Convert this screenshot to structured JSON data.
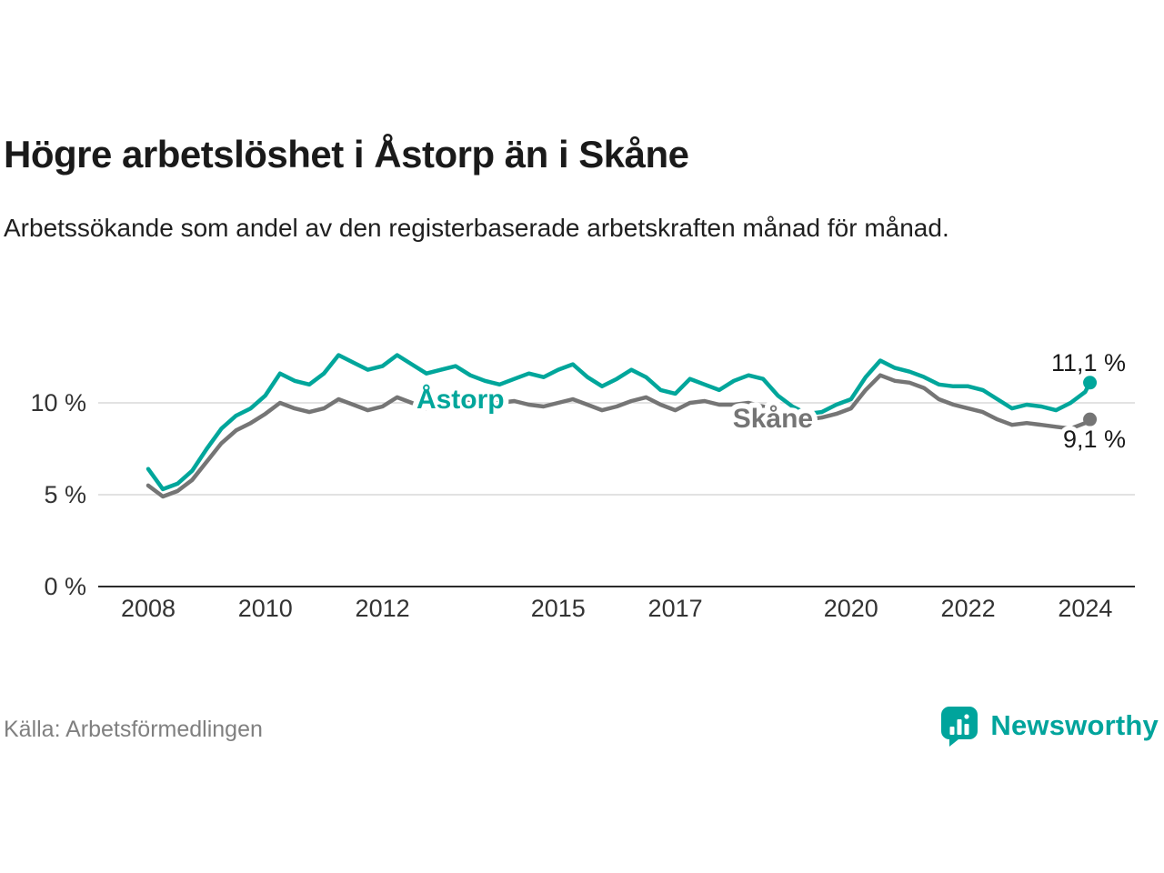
{
  "title": "Högre arbetslöshet i Åstorp än i Skåne",
  "subtitle": "Arbetssökande som andel av den registerbaserade arbetskraften månad för månad.",
  "source": "Källa: Arbetsförmedlingen",
  "brand": {
    "name": "Newsworthy",
    "color": "#00a49c"
  },
  "colors": {
    "astorp": "#00a69b",
    "skane": "#757575",
    "grid": "#d9d9d9",
    "axis": "#2b2b2b",
    "text": "#333333"
  },
  "chart_data": {
    "type": "line",
    "title": "Högre arbetslöshet i Åstorp än i Skåne",
    "xlabel": "",
    "ylabel": "",
    "grid": true,
    "legend_position": "inline",
    "xlim": [
      2007.85,
      2024.6
    ],
    "ylim": [
      0,
      13.6
    ],
    "x_ticks": [
      2008,
      2010,
      2012,
      2015,
      2017,
      2020,
      2022,
      2024
    ],
    "y_ticks": [
      0,
      5,
      10
    ],
    "y_tick_labels": [
      "0 %",
      "5 %",
      "10 %"
    ],
    "x": [
      2008,
      2008.25,
      2008.5,
      2008.75,
      2009,
      2009.25,
      2009.5,
      2009.75,
      2010,
      2010.25,
      2010.5,
      2010.75,
      2011,
      2011.25,
      2011.5,
      2011.75,
      2012,
      2012.25,
      2012.5,
      2012.75,
      2013,
      2013.25,
      2013.5,
      2013.75,
      2014,
      2014.25,
      2014.5,
      2014.75,
      2015,
      2015.25,
      2015.5,
      2015.75,
      2016,
      2016.25,
      2016.5,
      2016.75,
      2017,
      2017.25,
      2017.5,
      2017.75,
      2018,
      2018.25,
      2018.5,
      2018.75,
      2019,
      2019.25,
      2019.5,
      2019.75,
      2020,
      2020.25,
      2020.5,
      2020.75,
      2021,
      2021.25,
      2021.5,
      2021.75,
      2022,
      2022.25,
      2022.5,
      2022.75,
      2023,
      2023.25,
      2023.5,
      2023.75,
      2024,
      2024.08
    ],
    "series": [
      {
        "name": "Åstorp",
        "color": "#00a69b",
        "end_label": "11,1 %",
        "end_value": 11.1,
        "end_label_dy": -13,
        "values": [
          6.4,
          5.3,
          5.6,
          6.3,
          7.5,
          8.6,
          9.3,
          9.7,
          10.4,
          11.6,
          11.2,
          11.0,
          11.6,
          12.6,
          12.2,
          11.8,
          12.0,
          12.6,
          12.1,
          11.6,
          11.8,
          12.0,
          11.5,
          11.2,
          11.0,
          11.3,
          11.6,
          11.4,
          11.8,
          12.1,
          11.4,
          10.9,
          11.3,
          11.8,
          11.4,
          10.7,
          10.5,
          11.3,
          11.0,
          10.7,
          11.2,
          11.5,
          11.3,
          10.4,
          9.8,
          9.4,
          9.5,
          9.9,
          10.2,
          11.4,
          12.3,
          11.9,
          11.7,
          11.4,
          11.0,
          10.9,
          10.9,
          10.7,
          10.2,
          9.7,
          9.9,
          9.8,
          9.6,
          10.0,
          10.6,
          11.1
        ]
      },
      {
        "name": "Skåne",
        "color": "#757575",
        "end_label": "9,1 %",
        "end_value": 9.1,
        "end_label_dy": 31,
        "values": [
          5.5,
          4.9,
          5.2,
          5.8,
          6.8,
          7.8,
          8.5,
          8.9,
          9.4,
          10.0,
          9.7,
          9.5,
          9.7,
          10.2,
          9.9,
          9.6,
          9.8,
          10.3,
          10.0,
          9.7,
          10.0,
          10.3,
          10.1,
          9.9,
          10.0,
          10.1,
          9.9,
          9.8,
          10.0,
          10.2,
          9.9,
          9.6,
          9.8,
          10.1,
          10.3,
          9.9,
          9.6,
          10.0,
          10.1,
          9.9,
          9.9,
          10.0,
          9.8,
          9.5,
          9.2,
          9.1,
          9.2,
          9.4,
          9.7,
          10.7,
          11.5,
          11.2,
          11.1,
          10.8,
          10.2,
          9.9,
          9.7,
          9.5,
          9.1,
          8.8,
          8.9,
          8.8,
          8.7,
          8.6,
          8.9,
          9.1
        ]
      }
    ],
    "series_labels": [
      {
        "text": "Åstorp",
        "color": "#00a69b",
        "x": 2012.58,
        "y": 10.2
      },
      {
        "text": "Skåne",
        "color": "#757575",
        "x": 2017.98,
        "y": 9.15
      }
    ]
  }
}
